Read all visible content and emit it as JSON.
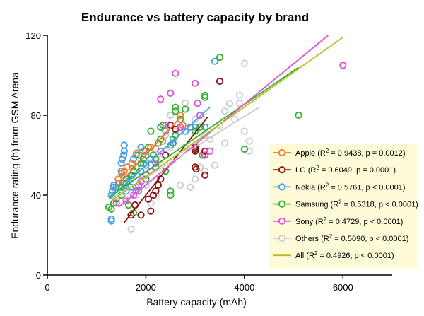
{
  "chart_data": {
    "type": "scatter",
    "title": "Endurance vs battery capacity by brand",
    "xlabel": "Battery capacity (mAh)",
    "ylabel": "Endurance rating (h) from GSM Arena",
    "xlim": [
      0,
      7000
    ],
    "ylim": [
      0,
      120
    ],
    "xticks": [
      0,
      2000,
      4000,
      6000
    ],
    "yticks": [
      0,
      40,
      80,
      120
    ],
    "grid": false,
    "legend_position": "bottom-right",
    "series": [
      {
        "name": "Apple",
        "stats": [
          "Apple (R",
          "2",
          " = 0.9438, p = 0.0012)"
        ],
        "color": "#f07a2a",
        "fit": [
          [
            1400,
            44
          ],
          [
            2700,
            79
          ]
        ],
        "points": [
          [
            1440,
            48
          ],
          [
            1510,
            51
          ],
          [
            1560,
            52
          ],
          [
            1620,
            54
          ],
          [
            1715,
            56
          ],
          [
            1810,
            61
          ],
          [
            1960,
            62
          ],
          [
            2100,
            64
          ],
          [
            2340,
            67
          ],
          [
            2700,
            80
          ],
          [
            2750,
            75
          ]
        ]
      },
      {
        "name": "LG",
        "stats": [
          "LG (R",
          "2",
          " = 0.6049, p = 0.0001)"
        ],
        "color": "#8b1212",
        "fit": [
          [
            1550,
            26
          ],
          [
            3250,
            79
          ]
        ],
        "points": [
          [
            1700,
            30
          ],
          [
            1900,
            30
          ],
          [
            2100,
            32
          ],
          [
            2150,
            40
          ],
          [
            2200,
            42
          ],
          [
            2250,
            45
          ],
          [
            2300,
            48
          ],
          [
            2400,
            60
          ],
          [
            2500,
            75
          ],
          [
            2600,
            73
          ],
          [
            3000,
            62
          ],
          [
            3000,
            63
          ],
          [
            3000,
            64
          ],
          [
            3000,
            54
          ],
          [
            3020,
            53
          ],
          [
            3200,
            50
          ],
          [
            3200,
            60
          ],
          [
            3200,
            62
          ],
          [
            3500,
            97
          ],
          [
            1780,
            35
          ],
          [
            2050,
            38
          ]
        ]
      },
      {
        "name": "Nokia",
        "stats": [
          "Nokia (R",
          "2",
          " = 0.5761, p < 0.0001)"
        ],
        "color": "#4a9fe4",
        "fit": [
          [
            1250,
            38
          ],
          [
            3300,
            84
          ]
        ],
        "points": [
          [
            1300,
            27
          ],
          [
            1300,
            28
          ],
          [
            1300,
            40
          ],
          [
            1320,
            42
          ],
          [
            1330,
            44
          ],
          [
            1350,
            45
          ],
          [
            1400,
            44
          ],
          [
            1450,
            46
          ],
          [
            1500,
            52
          ],
          [
            1500,
            56
          ],
          [
            1520,
            58
          ],
          [
            1550,
            60
          ],
          [
            1560,
            62
          ],
          [
            1560,
            65
          ],
          [
            1600,
            46
          ],
          [
            1650,
            47
          ],
          [
            1700,
            48
          ],
          [
            1720,
            50
          ],
          [
            1750,
            58
          ],
          [
            1800,
            44
          ],
          [
            1800,
            60
          ],
          [
            1850,
            42
          ],
          [
            1900,
            52
          ],
          [
            1900,
            64
          ],
          [
            1950,
            56
          ],
          [
            2000,
            50
          ],
          [
            2000,
            55
          ],
          [
            2000,
            60
          ],
          [
            2100,
            58
          ],
          [
            2200,
            54
          ],
          [
            2300,
            62
          ],
          [
            2400,
            72
          ],
          [
            2500,
            65
          ],
          [
            2550,
            68
          ],
          [
            2600,
            70
          ],
          [
            2800,
            72
          ],
          [
            2900,
            74
          ],
          [
            3000,
            74
          ],
          [
            3200,
            74
          ],
          [
            3400,
            107
          ],
          [
            1600,
            42
          ],
          [
            1700,
            44
          ]
        ]
      },
      {
        "name": "Samsung",
        "stats": [
          "Samsung (R",
          "2",
          " = 0.5318, p < 0.0001)"
        ],
        "color": "#2eb32e",
        "fit": [
          [
            1250,
            39
          ],
          [
            5100,
            104
          ]
        ],
        "points": [
          [
            1250,
            34
          ],
          [
            1300,
            33
          ],
          [
            1350,
            36
          ],
          [
            1400,
            38
          ],
          [
            1500,
            40
          ],
          [
            1500,
            44
          ],
          [
            1550,
            46
          ],
          [
            1600,
            48
          ],
          [
            1650,
            35
          ],
          [
            1700,
            50
          ],
          [
            1750,
            31
          ],
          [
            1750,
            52
          ],
          [
            1800,
            54
          ],
          [
            1850,
            60
          ],
          [
            1900,
            56
          ],
          [
            1950,
            58
          ],
          [
            2000,
            48
          ],
          [
            2000,
            62
          ],
          [
            2050,
            64
          ],
          [
            2100,
            72
          ],
          [
            2150,
            60
          ],
          [
            2200,
            58
          ],
          [
            2250,
            66
          ],
          [
            2300,
            68
          ],
          [
            2300,
            74
          ],
          [
            2350,
            75
          ],
          [
            2400,
            52
          ],
          [
            2500,
            40
          ],
          [
            2500,
            42
          ],
          [
            2550,
            66
          ],
          [
            2600,
            70
          ],
          [
            2600,
            82
          ],
          [
            2600,
            84
          ],
          [
            2700,
            78
          ],
          [
            2800,
            83
          ],
          [
            3000,
            72
          ],
          [
            3100,
            74
          ],
          [
            3150,
            60
          ],
          [
            3200,
            89
          ],
          [
            3200,
            90
          ],
          [
            3500,
            109
          ],
          [
            4000,
            63
          ],
          [
            5100,
            80
          ]
        ]
      },
      {
        "name": "Sony",
        "stats": [
          "Sony (R",
          "2",
          " = 0.4729, p < 0.0001)"
        ],
        "color": "#e44fd6",
        "fit": [
          [
            1450,
            34
          ],
          [
            5700,
            120
          ]
        ],
        "points": [
          [
            1400,
            36
          ],
          [
            1600,
            37
          ],
          [
            1750,
            40
          ],
          [
            1800,
            42
          ],
          [
            1850,
            45
          ],
          [
            1900,
            47
          ],
          [
            2000,
            50
          ],
          [
            2100,
            52
          ],
          [
            2200,
            56
          ],
          [
            2300,
            88
          ],
          [
            2400,
            75
          ],
          [
            2500,
            91
          ],
          [
            2600,
            101
          ],
          [
            2700,
            74
          ],
          [
            3000,
            96
          ],
          [
            3050,
            86
          ],
          [
            3100,
            80
          ],
          [
            3200,
            60
          ],
          [
            3300,
            62
          ],
          [
            2300,
            62
          ],
          [
            6000,
            105
          ]
        ]
      },
      {
        "name": "Others",
        "stats": [
          "Others (R",
          "2",
          " = 0.5090, p < 0.0001)"
        ],
        "color": "#cccccc",
        "fit": [
          [
            1300,
            38
          ],
          [
            4300,
            84
          ]
        ],
        "points": [
          [
            1300,
            40
          ],
          [
            1400,
            42
          ],
          [
            1500,
            44
          ],
          [
            1600,
            38
          ],
          [
            1700,
            23
          ],
          [
            1800,
            40
          ],
          [
            1900,
            52
          ],
          [
            2000,
            45
          ],
          [
            2100,
            36
          ],
          [
            2200,
            40
          ],
          [
            2300,
            58
          ],
          [
            2400,
            60
          ],
          [
            2400,
            70
          ],
          [
            2500,
            64
          ],
          [
            2600,
            72
          ],
          [
            2700,
            45
          ],
          [
            2800,
            64
          ],
          [
            2900,
            44
          ],
          [
            3000,
            48
          ],
          [
            3000,
            78
          ],
          [
            3100,
            54
          ],
          [
            3200,
            52
          ],
          [
            3300,
            68
          ],
          [
            3400,
            55
          ],
          [
            3600,
            82
          ],
          [
            3700,
            86
          ],
          [
            3800,
            78
          ],
          [
            3900,
            90
          ],
          [
            4000,
            106
          ],
          [
            4000,
            72
          ],
          [
            4100,
            67
          ],
          [
            4100,
            62
          ],
          [
            2500,
            80
          ],
          [
            2800,
            86
          ],
          [
            3200,
            70
          ],
          [
            3500,
            75
          ],
          [
            3600,
            66
          ],
          [
            3900,
            86
          ],
          [
            2000,
            56
          ],
          [
            2200,
            63
          ]
        ]
      },
      {
        "name": "All",
        "stats": [
          "All (R",
          "2",
          " = 0.4926, p < 0.0001)"
        ],
        "color": "#b5bc1a",
        "is_fit_only": true,
        "fit": [
          [
            1300,
            37
          ],
          [
            6000,
            119
          ]
        ],
        "points": []
      }
    ]
  }
}
